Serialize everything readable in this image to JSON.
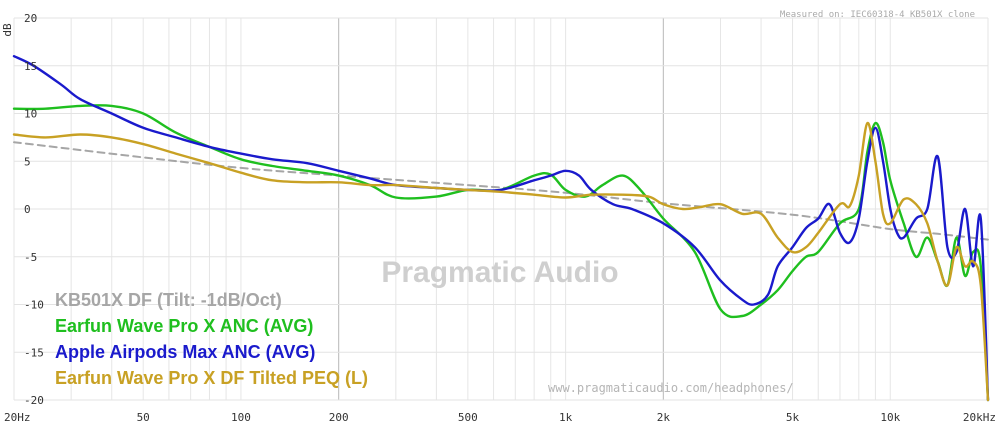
{
  "chart_data": {
    "type": "line",
    "watermark": "Pragmatic Audio",
    "note": "Measured on: IEC60318-4 KB501X clone",
    "url": "www.pragmaticaudio.com/headphones/",
    "ylabel": "dB",
    "xlim": [
      20,
      20000
    ],
    "ylim": [
      -20,
      20
    ],
    "x_scale": "log",
    "grid": true,
    "legend_position": "bottom-left",
    "x_ticks": [
      {
        "value": 20,
        "label": "20Hz"
      },
      {
        "value": 50,
        "label": "50"
      },
      {
        "value": 100,
        "label": "100"
      },
      {
        "value": 200,
        "label": "200"
      },
      {
        "value": 500,
        "label": "500"
      },
      {
        "value": 1000,
        "label": "1k"
      },
      {
        "value": 2000,
        "label": "2k"
      },
      {
        "value": 5000,
        "label": "5k"
      },
      {
        "value": 10000,
        "label": "10k"
      },
      {
        "value": 20000,
        "label": "20kHz"
      }
    ],
    "y_ticks": [
      20,
      15,
      10,
      5,
      0,
      -5,
      -10,
      -15,
      -20
    ],
    "series": [
      {
        "name": "KB501X DF (Tilt: -1dB/Oct)",
        "color": "#a6a6a6",
        "dashed": true,
        "x": [
          20,
          50,
          100,
          200,
          500,
          1000,
          2000,
          5000,
          10000,
          14000,
          20000
        ],
        "y": [
          7.0,
          5.4,
          4.3,
          3.5,
          2.5,
          1.7,
          0.6,
          -0.6,
          -2.1,
          -2.6,
          -3.2
        ]
      },
      {
        "name": "Earfun Wave Pro X ANC (AVG)",
        "color": "#1fbf1f",
        "dashed": false,
        "x": [
          20,
          25,
          32,
          40,
          50,
          63,
          80,
          100,
          125,
          160,
          200,
          250,
          300,
          400,
          500,
          630,
          800,
          900,
          1000,
          1150,
          1300,
          1500,
          1700,
          2000,
          2500,
          3000,
          3500,
          4000,
          4500,
          5000,
          5500,
          6000,
          7000,
          8000,
          8500,
          9000,
          9500,
          10000,
          11000,
          12000,
          13000,
          14000,
          15000,
          16000,
          17000,
          18000,
          19000,
          20000
        ],
        "y": [
          10.5,
          10.5,
          10.8,
          10.8,
          10.0,
          8.0,
          6.5,
          5.2,
          4.5,
          4.0,
          3.5,
          2.5,
          1.2,
          1.3,
          2.0,
          2.0,
          3.5,
          3.6,
          2.0,
          1.3,
          2.5,
          3.5,
          2.0,
          -1.0,
          -4.5,
          -10.5,
          -11.2,
          -10.0,
          -8.5,
          -6.5,
          -5.0,
          -4.5,
          -1.5,
          0.0,
          6.0,
          9.0,
          7.0,
          3.0,
          -1.5,
          -5.0,
          -3.0,
          -5.5,
          -8.0,
          -3.0,
          -7.0,
          -4.5,
          -6.0,
          -20.0
        ]
      },
      {
        "name": "Apple Airpods Max ANC (AVG)",
        "color": "#1a1acc",
        "dashed": false,
        "x": [
          20,
          23,
          28,
          32,
          40,
          50,
          63,
          80,
          100,
          125,
          160,
          200,
          250,
          300,
          400,
          500,
          630,
          800,
          900,
          1000,
          1100,
          1200,
          1400,
          1600,
          2000,
          2500,
          3000,
          3500,
          3800,
          4200,
          4500,
          5000,
          5500,
          6000,
          6500,
          7000,
          7500,
          8000,
          8500,
          9000,
          9500,
          10000,
          10500,
          11000,
          12000,
          13000,
          14000,
          15000,
          16000,
          17000,
          18000,
          19000,
          20000
        ],
        "y": [
          16.0,
          15.0,
          13.0,
          11.5,
          10.0,
          8.5,
          7.5,
          6.5,
          5.8,
          5.2,
          4.8,
          4.0,
          3.2,
          2.5,
          2.2,
          2.0,
          2.0,
          3.0,
          3.5,
          4.0,
          3.5,
          2.0,
          0.5,
          0.0,
          -1.5,
          -4.0,
          -7.5,
          -9.5,
          -10.0,
          -9.0,
          -6.0,
          -4.0,
          -2.0,
          -1.0,
          0.5,
          -2.5,
          -3.5,
          -1.0,
          5.0,
          8.5,
          5.0,
          0.0,
          -2.5,
          -3.0,
          -1.0,
          0.0,
          5.5,
          -4.0,
          -4.5,
          0.0,
          -6.0,
          -1.0,
          -20.0
        ]
      },
      {
        "name": "Earfun Wave Pro X DF Tilted PEQ (L)",
        "color": "#c8a124",
        "dashed": false,
        "x": [
          20,
          25,
          32,
          40,
          50,
          63,
          80,
          100,
          125,
          160,
          200,
          250,
          300,
          400,
          500,
          630,
          800,
          1000,
          1200,
          1500,
          1800,
          2000,
          2300,
          2600,
          3000,
          3500,
          4000,
          4500,
          5000,
          5500,
          6000,
          7000,
          7500,
          8000,
          8500,
          9000,
          9500,
          10000,
          11000,
          12000,
          13000,
          14000,
          15000,
          16000,
          17000,
          18000,
          19000,
          20000
        ],
        "y": [
          7.8,
          7.5,
          7.8,
          7.5,
          6.8,
          5.8,
          4.8,
          3.8,
          3.0,
          2.8,
          2.8,
          2.5,
          2.5,
          2.2,
          2.0,
          1.8,
          1.5,
          1.2,
          1.5,
          1.5,
          1.3,
          0.5,
          0.0,
          0.2,
          0.5,
          -0.5,
          -0.5,
          -3.0,
          -4.5,
          -4.0,
          -2.5,
          0.5,
          0.3,
          3.5,
          9.0,
          5.0,
          -0.5,
          -1.5,
          1.0,
          0.5,
          -1.5,
          -5.5,
          -8.0,
          -4.0,
          -6.0,
          -5.5,
          -8.0,
          -20.0
        ]
      }
    ]
  }
}
